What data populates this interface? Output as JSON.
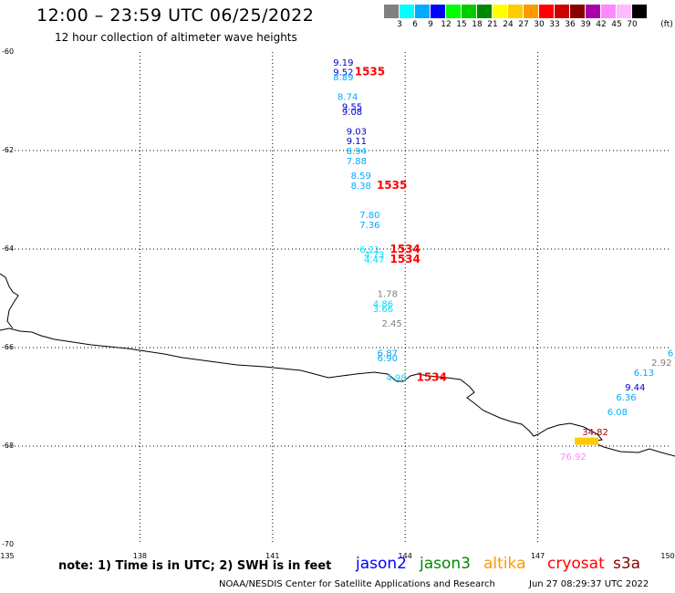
{
  "header": {
    "title": "12:00 – 23:59 UTC 06/25/2022",
    "subtitle": "12 hour collection of altimeter wave heights"
  },
  "colorbar": {
    "unit_label": "(ft)",
    "colors": [
      "#808080",
      "#00ffff",
      "#00aaff",
      "#0000ff",
      "#00ff00",
      "#00cc00",
      "#008800",
      "#ffff00",
      "#ffcc00",
      "#ff9900",
      "#ff0000",
      "#cc0000",
      "#880000",
      "#aa00aa",
      "#ff88ff",
      "#ffbbff",
      "#000000"
    ],
    "labels": [
      "3",
      "6",
      "9",
      "12",
      "15",
      "18",
      "21",
      "24",
      "27",
      "30",
      "33",
      "36",
      "39",
      "42",
      "45",
      "70"
    ]
  },
  "map": {
    "lat_ticks": [
      "-60",
      "-62",
      "-64",
      "-66",
      "-68",
      "-70"
    ],
    "lon_ticks": [
      "135",
      "138",
      "141",
      "144",
      "147",
      "150"
    ],
    "lon_range": [
      135,
      150
    ],
    "lat_range": [
      -70,
      -60
    ],
    "grid": "dotted",
    "coast_color": "#000000"
  },
  "observations": [
    {
      "lon": 142.6,
      "lat": -60.2,
      "text": "9.19",
      "color": "#0000cc"
    },
    {
      "lon": 142.6,
      "lat": -60.4,
      "text": "9.52",
      "color": "#0000cc"
    },
    {
      "lon": 142.6,
      "lat": -60.5,
      "text": "8.89",
      "color": "#00aaff"
    },
    {
      "lon": 142.7,
      "lat": -60.9,
      "text": "8.74",
      "color": "#00aaff"
    },
    {
      "lon": 142.8,
      "lat": -61.1,
      "text": "9.55",
      "color": "#0000cc"
    },
    {
      "lon": 142.8,
      "lat": -61.2,
      "text": "9.08",
      "color": "#0000cc"
    },
    {
      "lon": 142.9,
      "lat": -61.6,
      "text": "9.03",
      "color": "#0000cc"
    },
    {
      "lon": 142.9,
      "lat": -61.8,
      "text": "9.11",
      "color": "#0000cc"
    },
    {
      "lon": 142.9,
      "lat": -62.0,
      "text": "8.94",
      "color": "#00aaff"
    },
    {
      "lon": 142.9,
      "lat": -62.2,
      "text": "7.88",
      "color": "#00aaff"
    },
    {
      "lon": 143.0,
      "lat": -62.5,
      "text": "8.59",
      "color": "#00aaff"
    },
    {
      "lon": 143.0,
      "lat": -62.7,
      "text": "8.38",
      "color": "#00aaff"
    },
    {
      "lon": 143.2,
      "lat": -63.3,
      "text": "7.80",
      "color": "#00aaff"
    },
    {
      "lon": 143.2,
      "lat": -63.5,
      "text": "7.36",
      "color": "#00aaff"
    },
    {
      "lon": 143.2,
      "lat": -64.0,
      "text": "6.21",
      "color": "#00ddff"
    },
    {
      "lon": 143.3,
      "lat": -64.1,
      "text": "4.73",
      "color": "#00ddff"
    },
    {
      "lon": 143.3,
      "lat": -64.2,
      "text": "4.47",
      "color": "#00ddff"
    },
    {
      "lon": 143.6,
      "lat": -64.9,
      "text": "1.78",
      "color": "#808080"
    },
    {
      "lon": 143.5,
      "lat": -65.1,
      "text": "4.86",
      "color": "#00ddff"
    },
    {
      "lon": 143.5,
      "lat": -65.2,
      "text": "3.66",
      "color": "#00ddff"
    },
    {
      "lon": 143.7,
      "lat": -65.5,
      "text": "2.45",
      "color": "#808080"
    },
    {
      "lon": 143.6,
      "lat": -66.1,
      "text": "6.87",
      "color": "#00aaff"
    },
    {
      "lon": 143.6,
      "lat": -66.2,
      "text": "6.90",
      "color": "#00aaff"
    },
    {
      "lon": 143.8,
      "lat": -66.6,
      "text": "4.98",
      "color": "#00ddff"
    },
    {
      "lon": 143.2,
      "lat": -60.4,
      "text": "1535",
      "color": "#ff0000",
      "bold": true
    },
    {
      "lon": 143.7,
      "lat": -62.7,
      "text": "1535",
      "color": "#ff0000",
      "bold": true
    },
    {
      "lon": 144.0,
      "lat": -64.0,
      "text": "1534",
      "color": "#ff0000",
      "bold": true
    },
    {
      "lon": 144.0,
      "lat": -64.2,
      "text": "1534",
      "color": "#ff0000",
      "bold": true
    },
    {
      "lon": 144.6,
      "lat": -66.6,
      "text": "1534",
      "color": "#ff0000",
      "bold": true
    },
    {
      "lon": 150.0,
      "lat": -66.1,
      "text": "6",
      "color": "#00aaff"
    },
    {
      "lon": 149.8,
      "lat": -66.3,
      "text": "2.92",
      "color": "#808080"
    },
    {
      "lon": 149.4,
      "lat": -66.5,
      "text": "6.13",
      "color": "#00aaff"
    },
    {
      "lon": 149.2,
      "lat": -66.8,
      "text": "9.44",
      "color": "#0000cc"
    },
    {
      "lon": 149.0,
      "lat": -67.0,
      "text": "6.36",
      "color": "#00aaff"
    },
    {
      "lon": 148.8,
      "lat": -67.3,
      "text": "6.08",
      "color": "#00aaff"
    },
    {
      "lon": 148.3,
      "lat": -67.7,
      "text": "34.82",
      "color": "#aa0000"
    },
    {
      "lon": 148.0,
      "lat": -67.9,
      "text": "",
      "color": "#ffcc00"
    },
    {
      "lon": 147.8,
      "lat": -68.2,
      "text": "76.92",
      "color": "#ff88ff"
    }
  ],
  "footer": {
    "note": "note: 1) Time is in UTC; 2) SWH is in feet",
    "missions": [
      {
        "name": "jason2",
        "color": "#0000ff"
      },
      {
        "name": "jason3",
        "color": "#008800"
      },
      {
        "name": "altika",
        "color": "#ff9900"
      },
      {
        "name": "cryosat",
        "color": "#ff0000"
      },
      {
        "name": "s3a",
        "color": "#880000"
      }
    ],
    "credit": "NOAA/NESDIS Center for Satellite Applications and Research",
    "timestamp": "Jun 27 08:29:37 UTC 2022"
  }
}
